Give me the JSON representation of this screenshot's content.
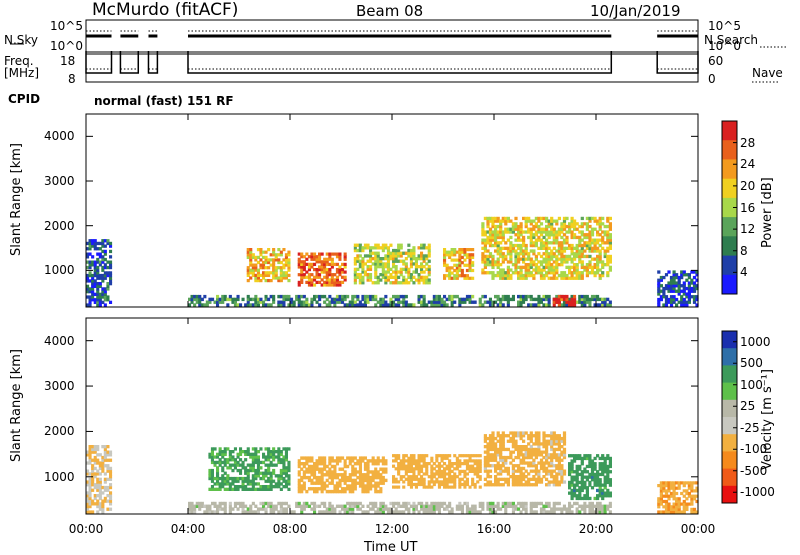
{
  "header": {
    "station": "McMurdo (fitACF)",
    "beam": "Beam 08",
    "date": "10/Jan/2019"
  },
  "top_panels": {
    "nsky_label": "N.Sky",
    "nsky_ticks": [
      "10^5",
      "10^0"
    ],
    "nsearch_label": "N.Search",
    "freq_label_1": "Freq.",
    "freq_label_2": "[MHz]",
    "freq_ticks": [
      "18",
      "8"
    ],
    "nave_label": "Nave",
    "nave_ticks": [
      "60",
      "0"
    ],
    "cpid_label": "CPID",
    "cpid_value": "normal (fast) 151 RF"
  },
  "colors": {
    "power_scale": [
      "#1a1aff",
      "#1f3fa8",
      "#2e7d4f",
      "#5aa45a",
      "#a8d84a",
      "#f0d020",
      "#f39a1e",
      "#e8601c",
      "#d92020"
    ],
    "velocity_scale": [
      "#e81010",
      "#f05a18",
      "#f58a1c",
      "#f2b040",
      "#c8c8c0",
      "#b8b8a8",
      "#5ec04a",
      "#3c9a5a",
      "#2e6fa8",
      "#1a2fae"
    ]
  },
  "chart_data": [
    {
      "type": "heatmap",
      "title": "",
      "xlabel": "Time UT",
      "ylabel": "Slant Range [km]",
      "xlim": [
        0,
        24
      ],
      "ylim": [
        180,
        4500
      ],
      "x_ticks": [
        "00:00",
        "04:00",
        "08:00",
        "12:00",
        "16:00",
        "20:00",
        "00:00"
      ],
      "y_ticks": [
        "1000",
        "2000",
        "3000",
        "4000"
      ],
      "colorbar_label": "Power [dB]",
      "colorbar_ticks": [
        "4",
        "8",
        "12",
        "16",
        "20",
        "24",
        "28"
      ],
      "colorbar_range": [
        0,
        30
      ],
      "data_gaps_hours": [
        [
          1.0,
          1.35
        ],
        [
          2.05,
          2.45
        ],
        [
          2.8,
          4.0
        ],
        [
          20.6,
          22.4
        ]
      ],
      "echo_bands": [
        {
          "t0": 0.0,
          "t1": 1.0,
          "r0": 200,
          "r1": 1700,
          "level": 6
        },
        {
          "t0": 4.0,
          "t1": 20.6,
          "r0": 200,
          "r1": 450,
          "level": 9
        },
        {
          "t0": 6.3,
          "t1": 8.0,
          "r0": 750,
          "r1": 1500,
          "level": 20
        },
        {
          "t0": 8.3,
          "t1": 10.2,
          "r0": 650,
          "r1": 1400,
          "level": 24
        },
        {
          "t0": 10.5,
          "t1": 13.5,
          "r0": 700,
          "r1": 1600,
          "level": 16
        },
        {
          "t0": 14.0,
          "t1": 15.2,
          "r0": 800,
          "r1": 1500,
          "level": 20
        },
        {
          "t0": 15.5,
          "t1": 20.6,
          "r0": 800,
          "r1": 2200,
          "level": 18
        },
        {
          "t0": 18.3,
          "t1": 19.2,
          "r0": 200,
          "r1": 450,
          "level": 28
        },
        {
          "t0": 22.4,
          "t1": 24.0,
          "r0": 200,
          "r1": 1000,
          "level": 5
        }
      ]
    },
    {
      "type": "heatmap",
      "title": "",
      "xlabel": "Time UT",
      "ylabel": "Slant Range [km]",
      "xlim": [
        0,
        24
      ],
      "ylim": [
        180,
        4500
      ],
      "x_ticks": [
        "00:00",
        "04:00",
        "08:00",
        "12:00",
        "16:00",
        "20:00",
        "00:00"
      ],
      "y_ticks": [
        "1000",
        "2000",
        "3000",
        "4000"
      ],
      "colorbar_label": "Velocity [m s⁻¹]",
      "colorbar_ticks": [
        "1000",
        "500",
        "100",
        "25",
        "-25",
        "-100",
        "-500",
        "-1000"
      ],
      "colorbar_range": [
        -1000,
        1000
      ],
      "echo_bands": [
        {
          "t0": 0.0,
          "t1": 1.0,
          "r0": 200,
          "r1": 1700,
          "velocity": -100
        },
        {
          "t0": 4.0,
          "t1": 20.6,
          "r0": 200,
          "r1": 450,
          "velocity": 0
        },
        {
          "t0": 4.8,
          "t1": 8.0,
          "r0": 700,
          "r1": 1650,
          "velocity": 150
        },
        {
          "t0": 8.3,
          "t1": 11.8,
          "r0": 650,
          "r1": 1450,
          "velocity": -200
        },
        {
          "t0": 12.0,
          "t1": 15.5,
          "r0": 750,
          "r1": 1500,
          "velocity": -250
        },
        {
          "t0": 15.6,
          "t1": 18.8,
          "r0": 800,
          "r1": 2000,
          "velocity": -150
        },
        {
          "t0": 18.9,
          "t1": 20.6,
          "r0": 500,
          "r1": 1500,
          "velocity": 300
        },
        {
          "t0": 22.4,
          "t1": 24.0,
          "r0": 200,
          "r1": 900,
          "velocity": -400
        }
      ]
    }
  ]
}
